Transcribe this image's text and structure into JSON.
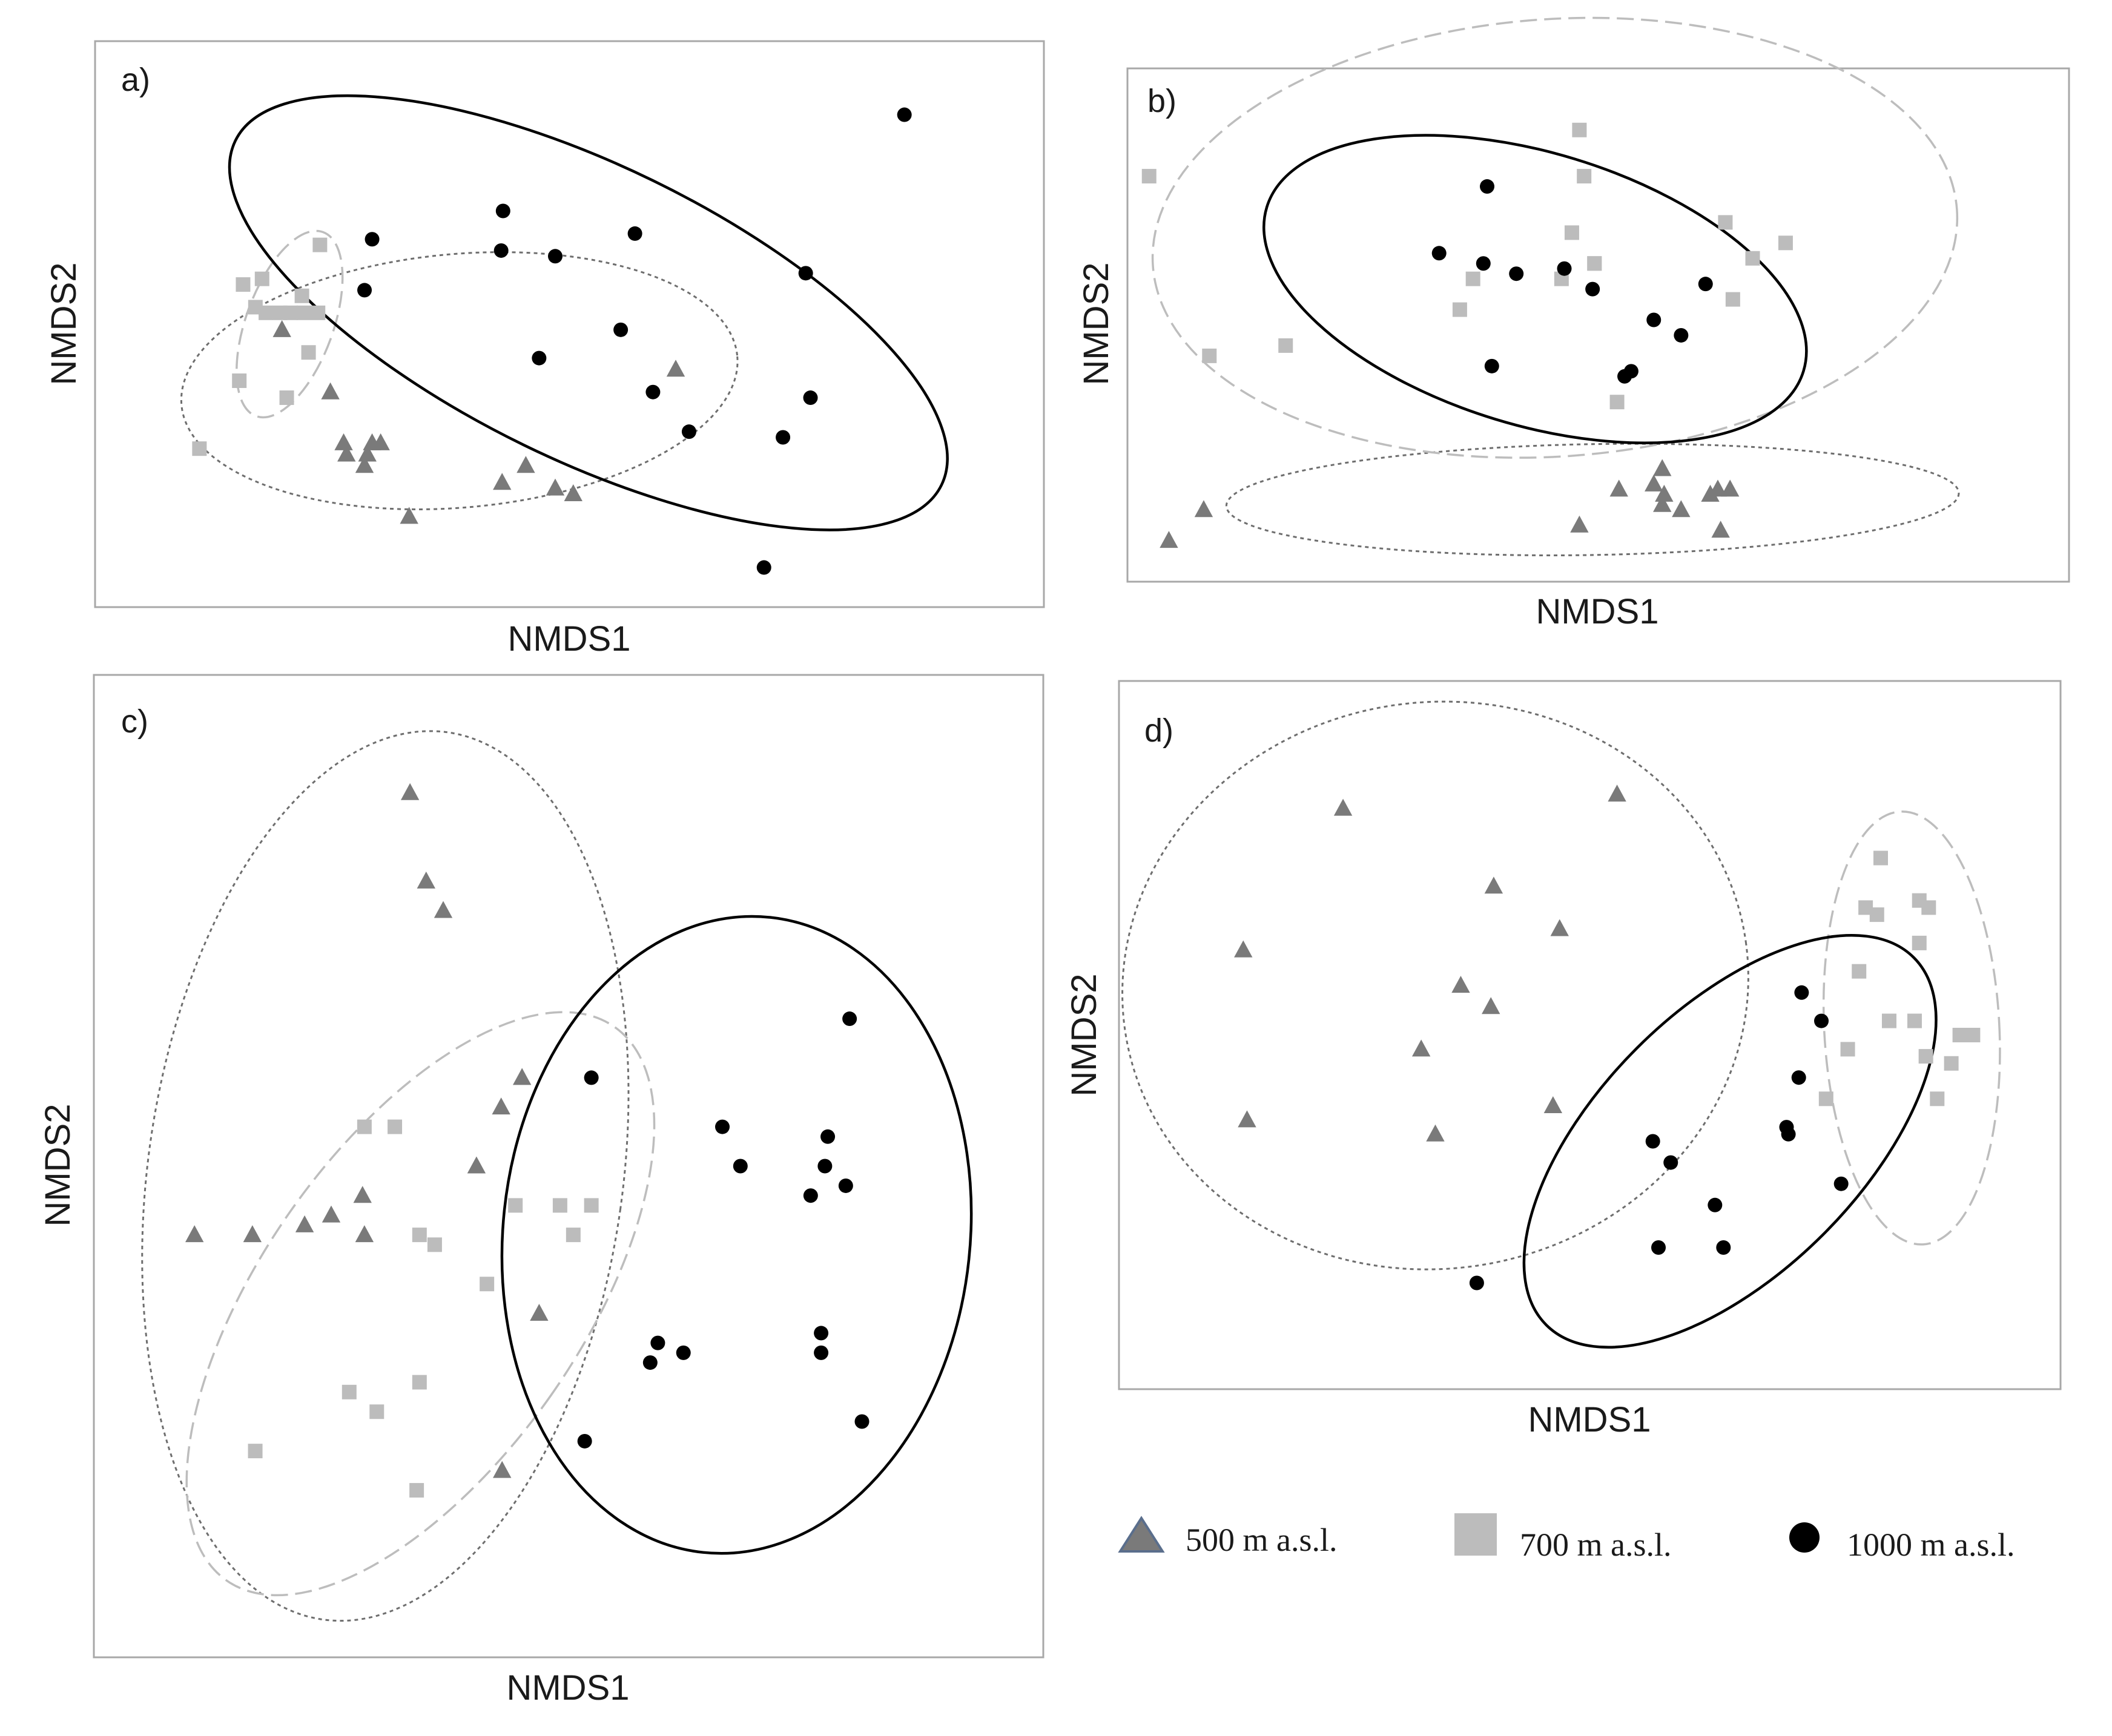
{
  "figure": {
    "legend": [
      {
        "key": "g500",
        "label": "500 m a.s.l.",
        "marker": "triangle-icon"
      },
      {
        "key": "g700",
        "label": "700 m a.s.l.",
        "marker": "square-icon"
      },
      {
        "key": "g1000",
        "label": "1000 m a.s.l.",
        "marker": "circle-icon"
      }
    ],
    "colors": {
      "g500": "#7a7a7a",
      "g700": "#bcbcbc",
      "g1000": "#000000",
      "frame": "#a8a8a8",
      "ellipse500": "#6e6e6e",
      "ellipse700": "#bdbdbd",
      "ellipse1000": "#000000"
    }
  },
  "chart_data": [
    {
      "type": "scatter",
      "panel": "a)",
      "xlabel": "NMDS1",
      "ylabel": "NMDS2",
      "xlim": [
        0,
        100
      ],
      "ylim": [
        0,
        100
      ],
      "series": [
        {
          "name": "500 m a.s.l.",
          "key": "g500",
          "points": [
            [
              19.7,
              49
            ],
            [
              24.8,
              38
            ],
            [
              26.2,
              29
            ],
            [
              26.5,
              27
            ],
            [
              28.4,
              25
            ],
            [
              28.7,
              27
            ],
            [
              29.2,
              29
            ],
            [
              30.1,
              29
            ],
            [
              33.1,
              16
            ],
            [
              42.9,
              22
            ],
            [
              45.4,
              25
            ],
            [
              48.5,
              21
            ],
            [
              50.4,
              20
            ],
            [
              61.2,
              42
            ]
          ]
        },
        {
          "name": "700 m a.s.l.",
          "key": "g700",
          "points": [
            [
              11.0,
              28
            ],
            [
              15.2,
              40
            ],
            [
              15.6,
              57
            ],
            [
              16.9,
              53
            ],
            [
              17.6,
              58
            ],
            [
              18.0,
              52
            ],
            [
              19.5,
              52
            ],
            [
              20.2,
              37
            ],
            [
              20.6,
              52
            ],
            [
              21.8,
              55
            ],
            [
              22.0,
              52
            ],
            [
              22.5,
              45
            ],
            [
              23.5,
              52
            ],
            [
              23.7,
              64
            ]
          ]
        },
        {
          "name": "1000 m a.s.l.",
          "key": "g1000",
          "points": [
            [
              28.4,
              56
            ],
            [
              29.2,
              65
            ],
            [
              42.8,
              63
            ],
            [
              43.0,
              70
            ],
            [
              46.8,
              44
            ],
            [
              48.5,
              62
            ],
            [
              55.4,
              49
            ],
            [
              56.9,
              66
            ],
            [
              58.8,
              38
            ],
            [
              62.6,
              31
            ],
            [
              70.5,
              7
            ],
            [
              72.5,
              30
            ],
            [
              74.9,
              59
            ],
            [
              75.4,
              37
            ],
            [
              85.3,
              87
            ]
          ]
        }
      ],
      "ellipses": [
        {
          "group": "500",
          "style": "dotted",
          "cx": 38.4,
          "cy": 40,
          "rx": 29.4,
          "ry": 22.4,
          "angle": -5
        },
        {
          "group": "700",
          "style": "dashed",
          "cx": 20.5,
          "cy": 50,
          "rx": 4.6,
          "ry": 17.3,
          "angle": 20
        },
        {
          "group": "1000",
          "style": "solid",
          "cx": 52.0,
          "cy": 52,
          "rx": 41.4,
          "ry": 26.0,
          "angle": 26
        }
      ]
    },
    {
      "type": "scatter",
      "panel": "b)",
      "xlabel": "NMDS1",
      "ylabel": "NMDS2",
      "xlim": [
        0,
        100
      ],
      "ylim": [
        0,
        100
      ],
      "series": [
        {
          "name": "500 m a.s.l.",
          "key": "g500",
          "points": [
            [
              4.4,
              8
            ],
            [
              8.1,
              14
            ],
            [
              48.0,
              11
            ],
            [
              52.2,
              18
            ],
            [
              55.9,
              19
            ],
            [
              56.8,
              15
            ],
            [
              56.8,
              22
            ],
            [
              57.0,
              17
            ],
            [
              58.8,
              14
            ],
            [
              61.9,
              17
            ],
            [
              62.7,
              18
            ],
            [
              63.0,
              10
            ],
            [
              64.0,
              18
            ]
          ]
        },
        {
          "name": "700 m a.s.l.",
          "key": "g700",
          "points": [
            [
              2.3,
              79
            ],
            [
              8.7,
              44
            ],
            [
              16.8,
              46
            ],
            [
              35.3,
              53
            ],
            [
              36.7,
              59
            ],
            [
              46.1,
              59
            ],
            [
              47.2,
              68
            ],
            [
              48.0,
              88
            ],
            [
              48.5,
              79
            ],
            [
              49.6,
              62
            ],
            [
              49.6,
              62
            ],
            [
              52.0,
              35
            ],
            [
              63.5,
              70
            ],
            [
              64.3,
              55
            ],
            [
              66.4,
              63
            ],
            [
              69.9,
              66
            ]
          ]
        },
        {
          "name": "1000 m a.s.l.",
          "key": "g1000",
          "points": [
            [
              33.1,
              64
            ],
            [
              37.8,
              62
            ],
            [
              38.2,
              77
            ],
            [
              38.7,
              42
            ],
            [
              41.3,
              60
            ],
            [
              46.4,
              61
            ],
            [
              49.4,
              57
            ],
            [
              52.8,
              40
            ],
            [
              53.5,
              41
            ],
            [
              55.9,
              51
            ],
            [
              58.8,
              48
            ],
            [
              61.4,
              58
            ]
          ]
        }
      ],
      "ellipses": [
        {
          "group": "500",
          "style": "dotted",
          "cx": 49.4,
          "cy": 16,
          "rx": 38.9,
          "ry": 10.8,
          "angle": -1
        },
        {
          "group": "700",
          "style": "dashed",
          "cx": 45.4,
          "cy": 67,
          "rx": 42.8,
          "ry": 42.6,
          "angle": -4
        },
        {
          "group": "1000",
          "style": "solid",
          "cx": 43.3,
          "cy": 57,
          "rx": 29.8,
          "ry": 26.5,
          "angle": 17
        }
      ]
    },
    {
      "type": "scatter",
      "panel": "c)",
      "xlabel": "NMDS1",
      "ylabel": "NMDS2",
      "xlim": [
        0,
        100
      ],
      "ylim": [
        0,
        100
      ],
      "series": [
        {
          "name": "500 m a.s.l.",
          "key": "g500",
          "points": [
            [
              10.6,
              43
            ],
            [
              16.7,
              43
            ],
            [
              22.2,
              44
            ],
            [
              25.0,
              45
            ],
            [
              28.3,
              47
            ],
            [
              28.5,
              43
            ],
            [
              33.3,
              88
            ],
            [
              35.0,
              79
            ],
            [
              36.8,
              76
            ],
            [
              40.3,
              50
            ],
            [
              42.9,
              56
            ],
            [
              45.1,
              59
            ],
            [
              46.9,
              35
            ],
            [
              43.0,
              19
            ]
          ]
        },
        {
          "name": "700 m a.s.l.",
          "key": "g700",
          "points": [
            [
              17.0,
              21
            ],
            [
              26.9,
              27
            ],
            [
              29.8,
              25
            ],
            [
              34.0,
              17
            ],
            [
              34.3,
              43
            ],
            [
              34.3,
              28
            ],
            [
              28.5,
              54
            ],
            [
              31.7,
              54
            ],
            [
              35.9,
              42
            ],
            [
              41.4,
              38
            ],
            [
              44.4,
              46
            ],
            [
              49.1,
              46
            ],
            [
              50.5,
              43
            ],
            [
              52.4,
              46
            ]
          ]
        },
        {
          "name": "1000 m a.s.l.",
          "key": "g1000",
          "points": [
            [
              51.7,
              22
            ],
            [
              52.4,
              59
            ],
            [
              58.6,
              30
            ],
            [
              59.4,
              32
            ],
            [
              62.1,
              31
            ],
            [
              66.2,
              54
            ],
            [
              68.1,
              50
            ],
            [
              75.5,
              47
            ],
            [
              76.6,
              31
            ],
            [
              76.6,
              33
            ],
            [
              77.0,
              50
            ],
            [
              77.3,
              53
            ],
            [
              79.2,
              48
            ],
            [
              79.6,
              65
            ],
            [
              80.9,
              24
            ]
          ]
        }
      ],
      "ellipses": [
        {
          "group": "500",
          "style": "dotted",
          "cx": 30.7,
          "cy": 49,
          "rx": 25.0,
          "ry": 45.6,
          "angle": 8
        },
        {
          "group": "700",
          "style": "dashed",
          "cx": 34.4,
          "cy": 36,
          "rx": 16.8,
          "ry": 34.4,
          "angle": 35
        },
        {
          "group": "1000",
          "style": "solid",
          "cx": 67.7,
          "cy": 43,
          "rx": 24.6,
          "ry": 32.5,
          "angle": 6
        }
      ]
    },
    {
      "type": "scatter",
      "panel": "d)",
      "xlabel": "NMDS1",
      "ylabel": "NMDS2",
      "xlim": [
        0,
        100
      ],
      "ylim": [
        0,
        100
      ],
      "series": [
        {
          "name": "500 m a.s.l.",
          "key": "g500",
          "points": [
            [
              13.2,
              62
            ],
            [
              13.6,
              38
            ],
            [
              23.8,
              82
            ],
            [
              32.1,
              48
            ],
            [
              33.6,
              36
            ],
            [
              36.3,
              57
            ],
            [
              39.5,
              54
            ],
            [
              39.8,
              71
            ],
            [
              46.1,
              40
            ],
            [
              46.8,
              65
            ],
            [
              52.9,
              84
            ]
          ]
        },
        {
          "name": "700 m a.s.l.",
          "key": "g700",
          "points": [
            [
              75.1,
              41
            ],
            [
              77.4,
              48
            ],
            [
              78.6,
              59
            ],
            [
              79.3,
              68
            ],
            [
              80.5,
              67
            ],
            [
              80.9,
              75
            ],
            [
              81.8,
              52
            ],
            [
              84.5,
              52
            ],
            [
              85.0,
              63
            ],
            [
              85.0,
              69
            ],
            [
              85.7,
              47
            ],
            [
              86.0,
              68
            ],
            [
              86.9,
              41
            ],
            [
              88.4,
              46
            ],
            [
              89.3,
              50
            ],
            [
              90.7,
              50
            ]
          ]
        },
        {
          "name": "1000 m a.s.l.",
          "key": "g1000",
          "points": [
            [
              38.0,
              15
            ],
            [
              56.7,
              35
            ],
            [
              57.3,
              20
            ],
            [
              58.6,
              32
            ],
            [
              63.3,
              26
            ],
            [
              64.2,
              20
            ],
            [
              70.9,
              37
            ],
            [
              71.1,
              36
            ],
            [
              72.2,
              44
            ],
            [
              72.5,
              56
            ],
            [
              74.6,
              52
            ],
            [
              76.7,
              29
            ]
          ]
        }
      ],
      "ellipses": [
        {
          "group": "500",
          "style": "dotted",
          "cx": 33.6,
          "cy": 57,
          "rx": 33.3,
          "ry": 40.0,
          "angle": -8
        },
        {
          "group": "700",
          "style": "dashed",
          "cx": 84.2,
          "cy": 51,
          "rx": 9.3,
          "ry": 30.6,
          "angle": -3
        },
        {
          "group": "1000",
          "style": "solid",
          "cx": 64.9,
          "cy": 35,
          "rx": 27.6,
          "ry": 18.6,
          "angle": -45
        }
      ]
    }
  ]
}
